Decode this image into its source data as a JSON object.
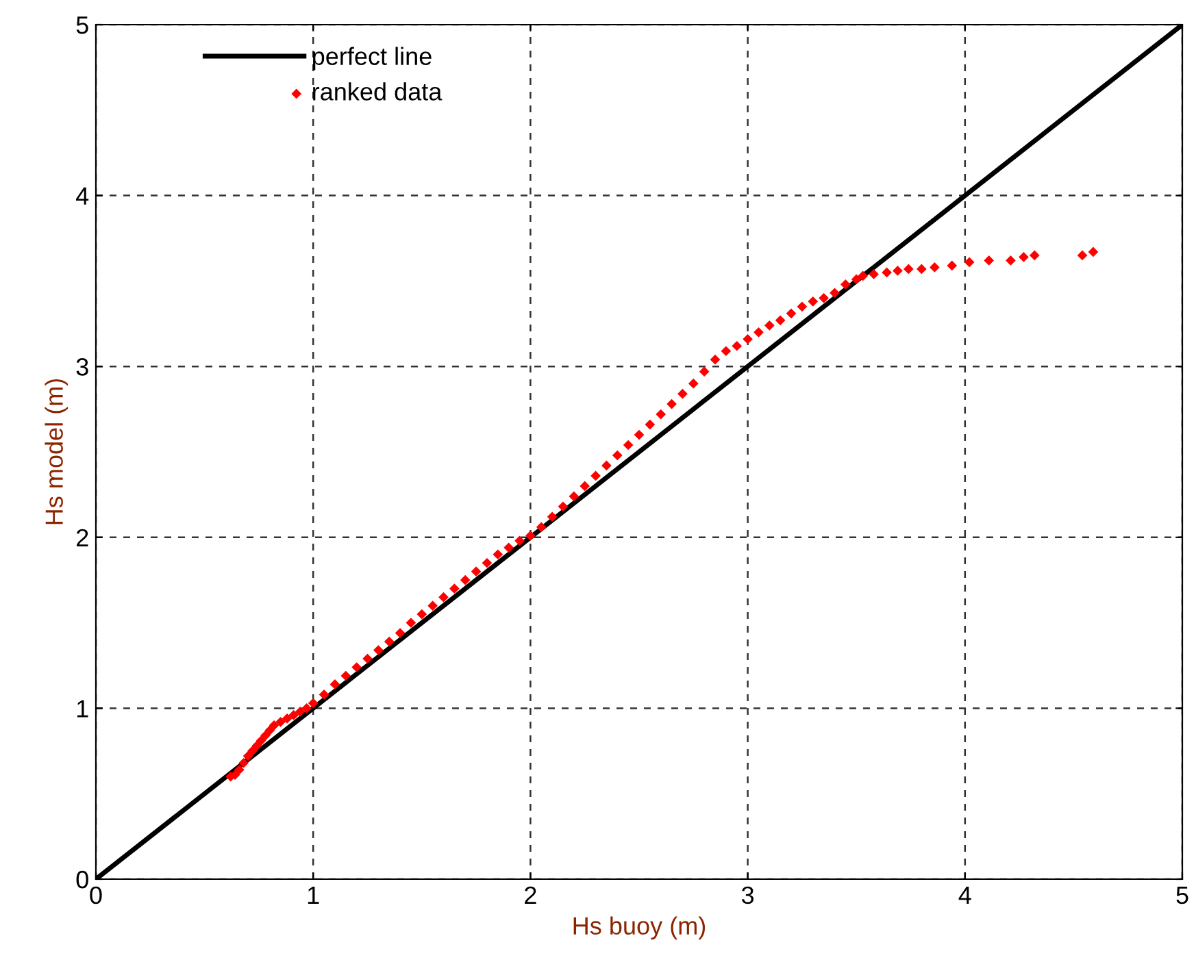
{
  "chart_data": {
    "type": "scatter",
    "xlabel": "Hs buoy (m)",
    "ylabel": "Hs model (m)",
    "xlim": [
      0,
      5
    ],
    "ylim": [
      0,
      5
    ],
    "xticks": [
      0,
      1,
      2,
      3,
      4,
      5
    ],
    "yticks": [
      0,
      1,
      2,
      3,
      4,
      5
    ],
    "grid": true,
    "legend": "top left",
    "series": [
      {
        "name": "perfect line",
        "type": "line",
        "color": "#000000",
        "line_style": "solid",
        "marker": "none",
        "x": [
          0,
          5
        ],
        "values": [
          0,
          5
        ]
      },
      {
        "name": "ranked data",
        "color": "#ff0000",
        "marker": "diamond",
        "x": [
          0.62,
          0.64,
          0.66,
          0.68,
          0.7,
          0.72,
          0.74,
          0.76,
          0.78,
          0.8,
          0.82,
          0.85,
          0.88,
          0.91,
          0.94,
          0.97,
          1.0,
          1.05,
          1.1,
          1.15,
          1.2,
          1.25,
          1.3,
          1.35,
          1.4,
          1.45,
          1.5,
          1.55,
          1.6,
          1.65,
          1.7,
          1.75,
          1.8,
          1.85,
          1.9,
          1.95,
          2.0,
          2.05,
          2.1,
          2.15,
          2.2,
          2.25,
          2.3,
          2.35,
          2.4,
          2.45,
          2.5,
          2.55,
          2.6,
          2.65,
          2.7,
          2.75,
          2.8,
          2.85,
          2.9,
          2.95,
          3.0,
          3.05,
          3.1,
          3.15,
          3.2,
          3.25,
          3.3,
          3.35,
          3.4,
          3.45,
          3.5,
          3.53,
          3.58,
          3.64,
          3.69,
          3.74,
          3.8,
          3.86,
          3.94,
          4.02,
          4.11,
          4.21,
          4.27,
          4.32,
          4.54,
          4.59
        ],
        "values": [
          0.6,
          0.61,
          0.64,
          0.68,
          0.72,
          0.75,
          0.78,
          0.81,
          0.84,
          0.87,
          0.9,
          0.92,
          0.94,
          0.96,
          0.98,
          1.0,
          1.03,
          1.08,
          1.14,
          1.19,
          1.24,
          1.29,
          1.34,
          1.39,
          1.44,
          1.5,
          1.55,
          1.6,
          1.65,
          1.7,
          1.75,
          1.8,
          1.85,
          1.9,
          1.94,
          1.98,
          2.01,
          2.06,
          2.12,
          2.18,
          2.24,
          2.3,
          2.36,
          2.42,
          2.48,
          2.54,
          2.6,
          2.66,
          2.72,
          2.78,
          2.84,
          2.9,
          2.97,
          3.04,
          3.09,
          3.12,
          3.16,
          3.2,
          3.24,
          3.27,
          3.31,
          3.35,
          3.38,
          3.4,
          3.43,
          3.48,
          3.51,
          3.53,
          3.54,
          3.55,
          3.56,
          3.57,
          3.57,
          3.58,
          3.59,
          3.61,
          3.62,
          3.62,
          3.64,
          3.65,
          3.65,
          3.67
        ]
      }
    ]
  }
}
